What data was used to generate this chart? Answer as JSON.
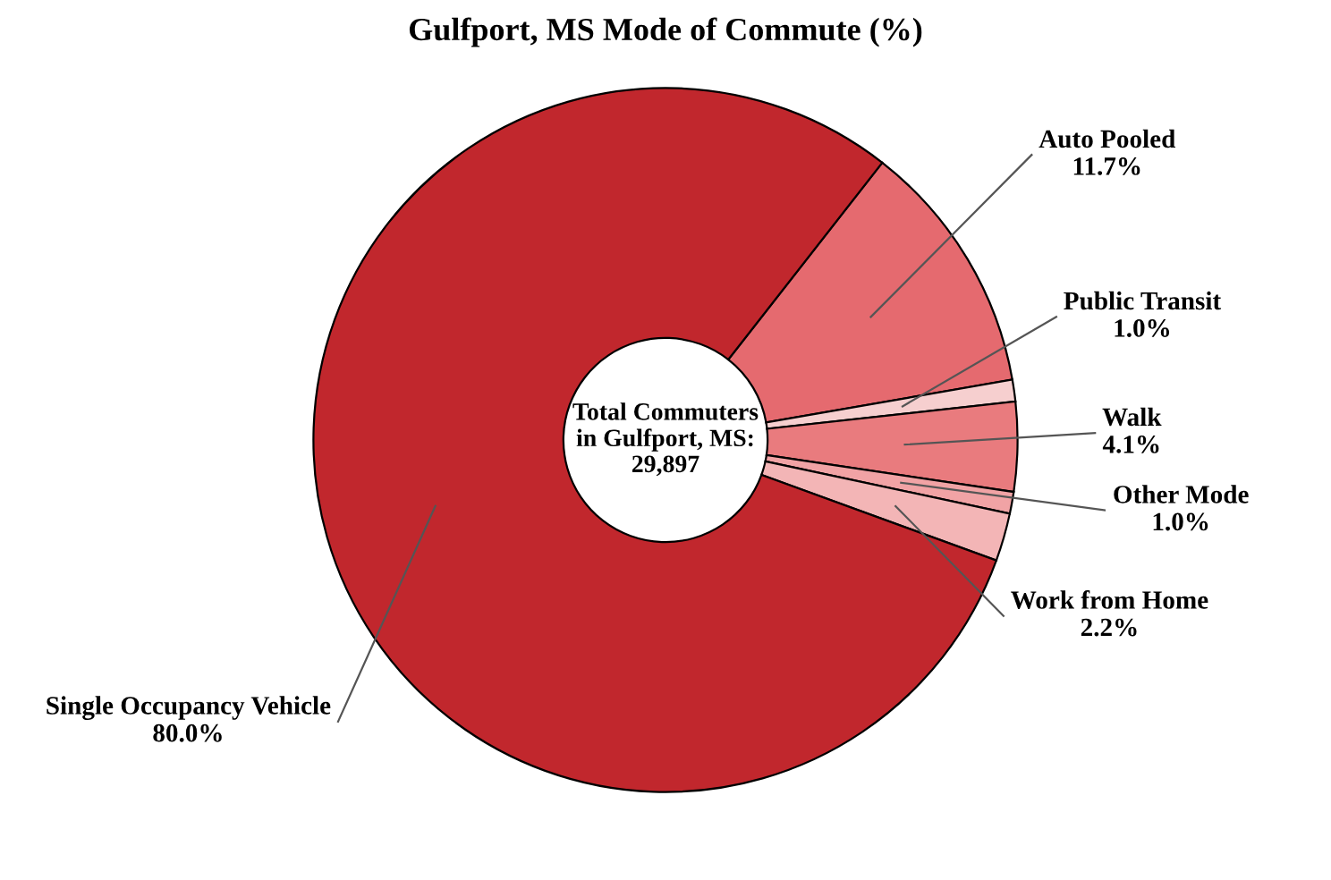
{
  "chart_data": {
    "type": "donut",
    "title": "Gulfport, MS Mode of Commute (%)",
    "categories": [
      "Auto Pooled",
      "Public Transit",
      "Walk",
      "Other Mode",
      "Work from Home",
      "Single Occupancy Vehicle"
    ],
    "values": [
      11.7,
      1.0,
      4.1,
      1.0,
      2.2,
      80.0
    ],
    "colors": [
      "#e56a6f",
      "#f6cfcf",
      "#e97b7e",
      "#f1a3a5",
      "#f3b5b6",
      "#c1272d"
    ],
    "value_labels": [
      "11.7%",
      "1.0%",
      "4.1%",
      "1.0%",
      "2.2%",
      "80.0%"
    ],
    "annotations": [
      "Total Commuters\nin Gulfport, MS:\n29,897"
    ]
  }
}
